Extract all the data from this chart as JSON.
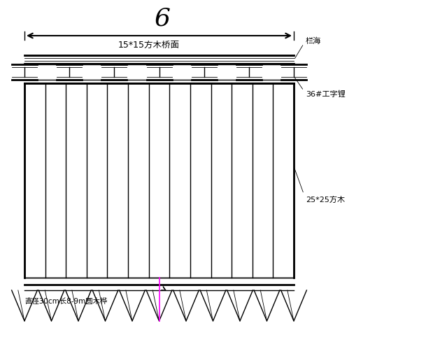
{
  "bg_color": "#ffffff",
  "line_color": "#000000",
  "magenta_color": "#ff00ff",
  "fig_width": 6.0,
  "fig_height": 4.5,
  "label_deck": "15*15方木桥面",
  "label_6": "6",
  "label_langan": "栏海",
  "label_36": "36#工字锂",
  "label_25": "25*25方木",
  "label_pile": "直径30cm长8-9m圆木桦"
}
